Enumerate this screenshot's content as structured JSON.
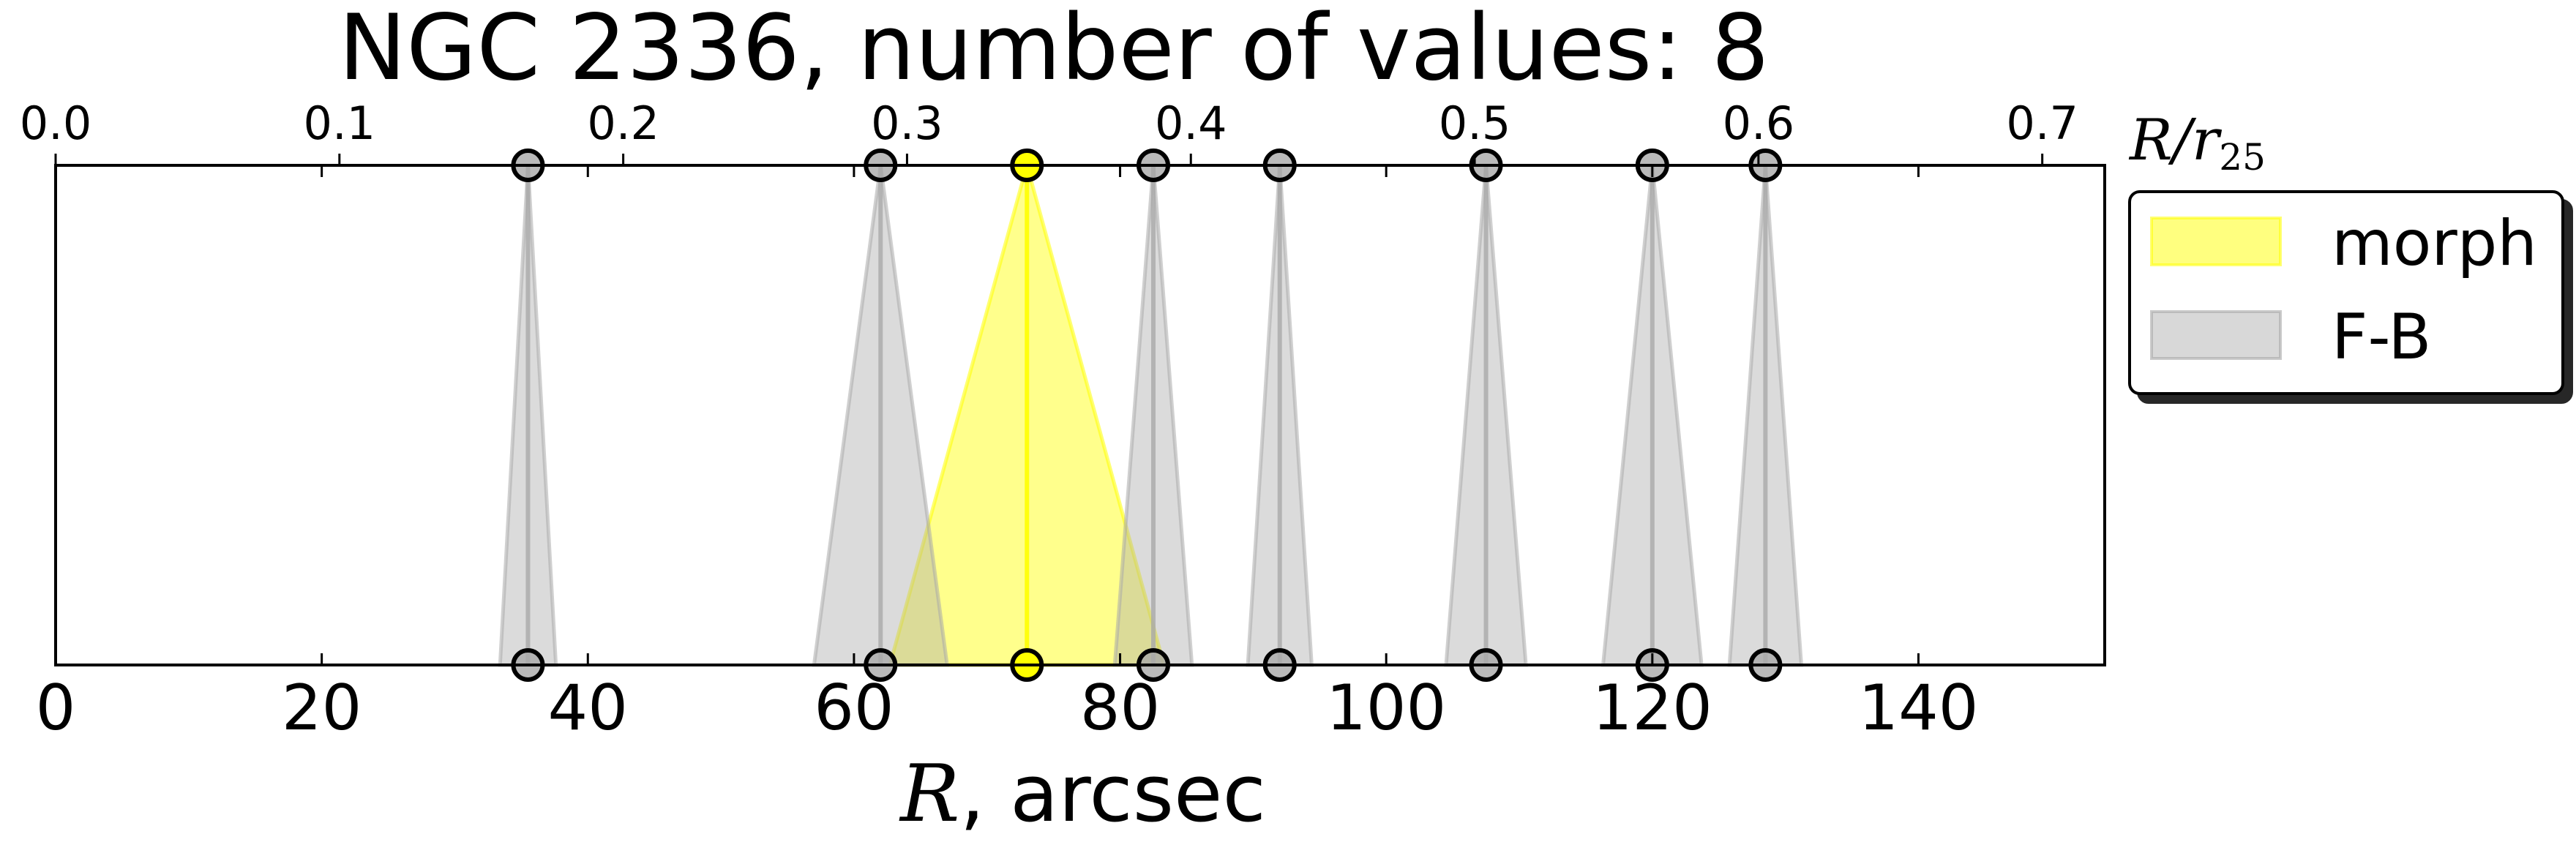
{
  "chart_data": {
    "type": "scatter",
    "title": "NGC 2336, number of values: 8",
    "xlabel_italic": "R",
    "xlabel_rest": ", arcsec",
    "xlim": [
      0,
      154
    ],
    "xticks": [
      "0",
      "20",
      "40",
      "60",
      "80",
      "100",
      "120",
      "140"
    ],
    "top_axis": {
      "label_main": "R/r",
      "label_sub": "25",
      "xlim": [
        0.0,
        0.722
      ],
      "ticks": [
        "0.0",
        "0.1",
        "0.2",
        "0.3",
        "0.4",
        "0.5",
        "0.6",
        "0.7"
      ]
    },
    "grid": false,
    "legend_position": "outside-right-top",
    "series": [
      {
        "name": "morph",
        "color": "#ffff00",
        "points": [
          {
            "x": 73.0,
            "bottom_width": 20.6
          }
        ]
      },
      {
        "name": "F-B",
        "color": "#a9a9a9",
        "points": [
          {
            "x": 35.5,
            "bottom_width": 4.2
          },
          {
            "x": 62.0,
            "bottom_width": 10.0
          },
          {
            "x": 82.5,
            "bottom_width": 5.8
          },
          {
            "x": 92.0,
            "bottom_width": 4.8
          },
          {
            "x": 107.5,
            "bottom_width": 6.0
          },
          {
            "x": 120.0,
            "bottom_width": 7.4
          },
          {
            "x": 128.5,
            "bottom_width": 5.4
          }
        ]
      }
    ]
  }
}
